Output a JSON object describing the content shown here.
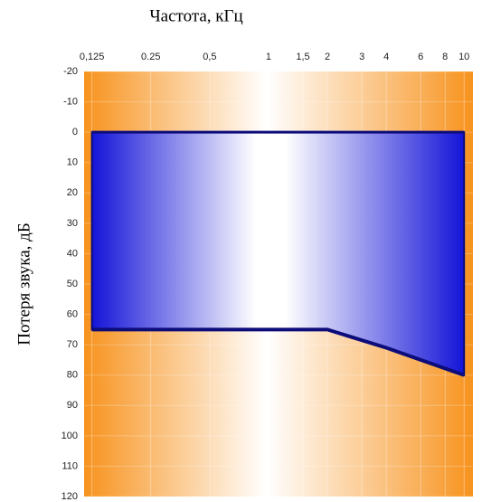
{
  "chart_data": {
    "type": "area",
    "title": "Частота, кГц",
    "y_label": "Потеря звука, дБ",
    "x": [
      0.125,
      2,
      4,
      10
    ],
    "series": [
      {
        "values": [
          65,
          65,
          71,
          80
        ],
        "color": "#1414d8",
        "line_color": "#0c0c7a"
      }
    ],
    "xscale": "log",
    "xlim": [
      0.114,
      11.1
    ],
    "xticks": [
      {
        "value": 0.125,
        "label": "0,125"
      },
      {
        "value": 0.25,
        "label": "0.25"
      },
      {
        "value": 0.5,
        "label": "0,5"
      },
      1,
      {
        "value": 1.5,
        "label": "1,5"
      },
      2,
      3,
      4,
      6,
      8,
      10
    ],
    "ylim": [
      120,
      -20
    ],
    "yticks": [
      -20,
      -10,
      0,
      10,
      20,
      30,
      40,
      50,
      60,
      70,
      80,
      90,
      100,
      110,
      120
    ],
    "grid": true
  }
}
